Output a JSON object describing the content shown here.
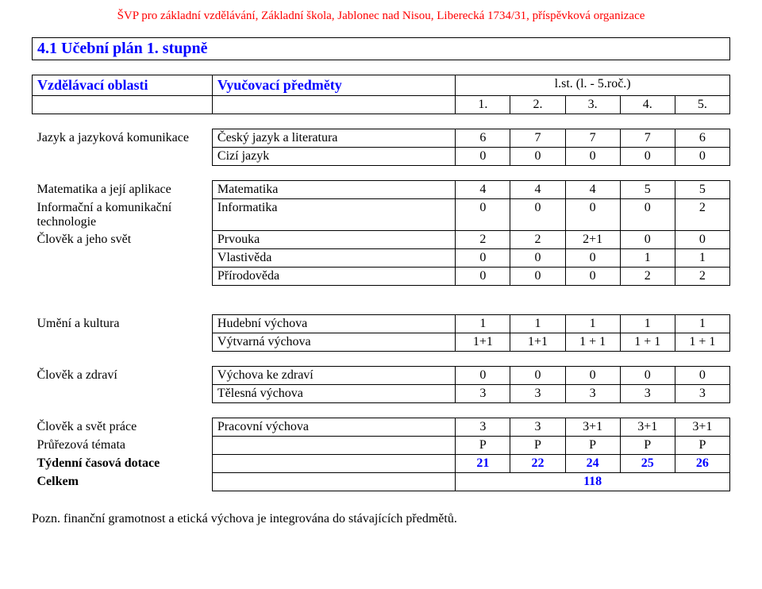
{
  "headerLine": "ŠVP pro základní vzdělávání, Základní škola, Jablonec nad Nisou, Liberecká 1734/31, příspěvková organizace",
  "sectionTitle": "4.1 Učební plán 1. stupně",
  "columns": {
    "areaHeader": "Vzdělávací oblasti",
    "subjHeader": "Vyučovací předměty",
    "gradesTitle": "l.st. (l. - 5.roč.)",
    "grades": [
      "1.",
      "2.",
      "3.",
      "4.",
      "5."
    ]
  },
  "groups": [
    {
      "area": "Jazyk a jazyková komunikace",
      "rows": [
        {
          "subject": "Český jazyk a literatura",
          "vals": [
            "6",
            "7",
            "7",
            "7",
            "6"
          ]
        },
        {
          "subject": "Cizí jazyk",
          "vals": [
            "0",
            "0",
            "0",
            "0",
            "0"
          ]
        }
      ]
    },
    {
      "area": "Matematika a její aplikace",
      "rows": [
        {
          "subject": "Matematika",
          "vals": [
            "4",
            "4",
            "4",
            "5",
            "5"
          ]
        }
      ]
    },
    {
      "area": "Informační a komunikační technologie",
      "rows": [
        {
          "subject": "Informatika",
          "vals": [
            "0",
            "0",
            "0",
            "0",
            "2"
          ]
        }
      ]
    },
    {
      "area": "Člověk a jeho svět",
      "rows": [
        {
          "subject": "Prvouka",
          "vals": [
            "2",
            "2",
            "2+1",
            "0",
            "0"
          ]
        },
        {
          "subject": "Vlastivěda",
          "vals": [
            "0",
            "0",
            "0",
            "1",
            "1"
          ]
        },
        {
          "subject": "Přírodověda",
          "vals": [
            "0",
            "0",
            "0",
            "2",
            "2"
          ]
        }
      ]
    },
    {
      "area": "Umění a kultura",
      "rows": [
        {
          "subject": "Hudební výchova",
          "vals": [
            "1",
            "1",
            "1",
            "1",
            "1"
          ]
        },
        {
          "subject": "Výtvarná výchova",
          "vals": [
            "1+1",
            "1+1",
            "1 + 1",
            "1 + 1",
            "1 + 1"
          ]
        }
      ]
    },
    {
      "area": "Člověk a zdraví",
      "rows": [
        {
          "subject": "Výchova ke zdraví",
          "vals": [
            "0",
            "0",
            "0",
            "0",
            "0"
          ]
        },
        {
          "subject": "Tělesná výchova",
          "vals": [
            "3",
            "3",
            "3",
            "3",
            "3"
          ]
        }
      ]
    },
    {
      "area": "Člověk a svět práce",
      "rows": [
        {
          "subject": "Pracovní výchova",
          "vals": [
            "3",
            "3",
            "3+1",
            "3+1",
            "3+1"
          ]
        }
      ]
    }
  ],
  "summary": {
    "pruLabel": "Průřezová témata",
    "pruVals": [
      "P",
      "P",
      "P",
      "P",
      "P"
    ],
    "weeklyLabel": "Týdenní časová dotace",
    "weeklyVals": [
      "21",
      "22",
      "24",
      "25",
      "26"
    ],
    "totalLabel": "Celkem",
    "totalVal": "118"
  },
  "note": "Pozn. finanční gramotnost a etická výchova je integrována do stávajících předmětů.",
  "style": {
    "red": "#ff0000",
    "blue": "#0000ff",
    "border": "#000000",
    "bg": "#ffffff",
    "font": "Times New Roman"
  }
}
